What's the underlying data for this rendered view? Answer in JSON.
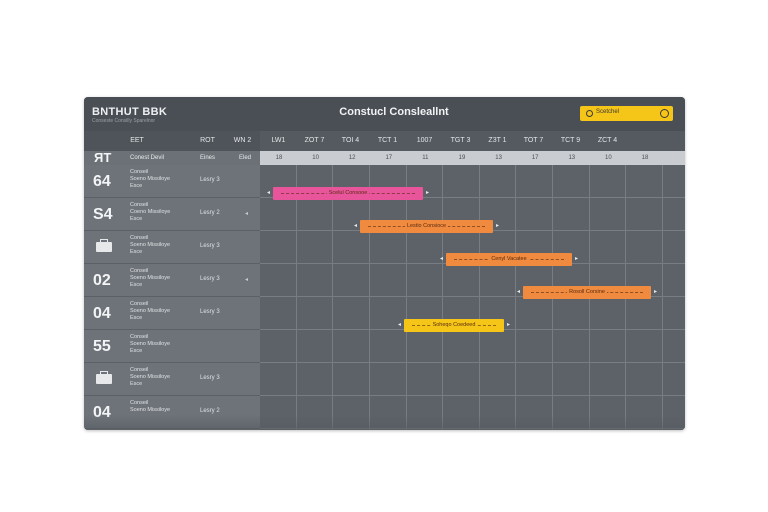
{
  "app": {
    "brand": "BNTHUT BBK",
    "brand_sub": "Conseste Consilly Sparelnor",
    "title": "Constucl Consleallnt"
  },
  "search": {
    "value": "Scetchel"
  },
  "columns": {
    "a": "EET",
    "b": "ROT",
    "c": "WN 2"
  },
  "months": [
    "LW1",
    "ZOT 7",
    "TOI 4",
    "TCT 1",
    "1007",
    "TGT 3",
    "Z3T 1",
    "TOT 7",
    "TCT 9",
    "ZCT 4"
  ],
  "subheader": {
    "id": "ЯТ",
    "desc": "Conest Devil",
    "res": "Eines",
    "extra": "Eled"
  },
  "days": [
    "18",
    "10",
    "12",
    "17",
    "11",
    "19",
    "13",
    "17",
    "13",
    "10",
    "18"
  ],
  "rows": [
    {
      "id": "64",
      "desc": "Conseil\nSoeno Missiloye\nEsce",
      "res": "Lesry 3",
      "arrow": ""
    },
    {
      "id": "S4",
      "desc": "Conseil\nCoeno Missiloye\nEsce",
      "res": "Lesry 2",
      "arrow": "◂"
    },
    {
      "id": "",
      "desc": "Conseil\nSoeno Missiloye\nEsce",
      "res": "Lesry 3",
      "arrow": "",
      "icon": true
    },
    {
      "id": "02",
      "desc": "Conseil\nSoeno Missiloye\nEsce",
      "res": "Lesry 3",
      "arrow": "◂"
    },
    {
      "id": "04",
      "desc": "Conseil\nSoeno Missiloye\nEsce",
      "res": "Lesry 3",
      "arrow": ""
    },
    {
      "id": "55",
      "desc": "Conseil\nSoeno Missiloye\nEsce",
      "res": "",
      "arrow": ""
    },
    {
      "id": "",
      "desc": "Conseil\nSoeno Missiloye\nEsce",
      "res": "Lesry 3",
      "arrow": "",
      "icon": true
    },
    {
      "id": "04",
      "desc": "Conseil\nSoeno Missiloye",
      "res": "Lesry 2",
      "arrow": ""
    }
  ],
  "tasks": [
    {
      "label": "Scelul Consooe",
      "color": "#e8559a",
      "row": 0
    },
    {
      "label": "Lestio Consioce",
      "color": "#f08a3e",
      "row": 1
    },
    {
      "label": "Cenyl Vacatee",
      "color": "#f08a3e",
      "row": 2
    },
    {
      "label": "Rosoll Corsine",
      "color": "#f08a3e",
      "row": 3
    },
    {
      "label": "Soheqo Coedeed",
      "color": "#f5c518",
      "row": 4
    }
  ]
}
